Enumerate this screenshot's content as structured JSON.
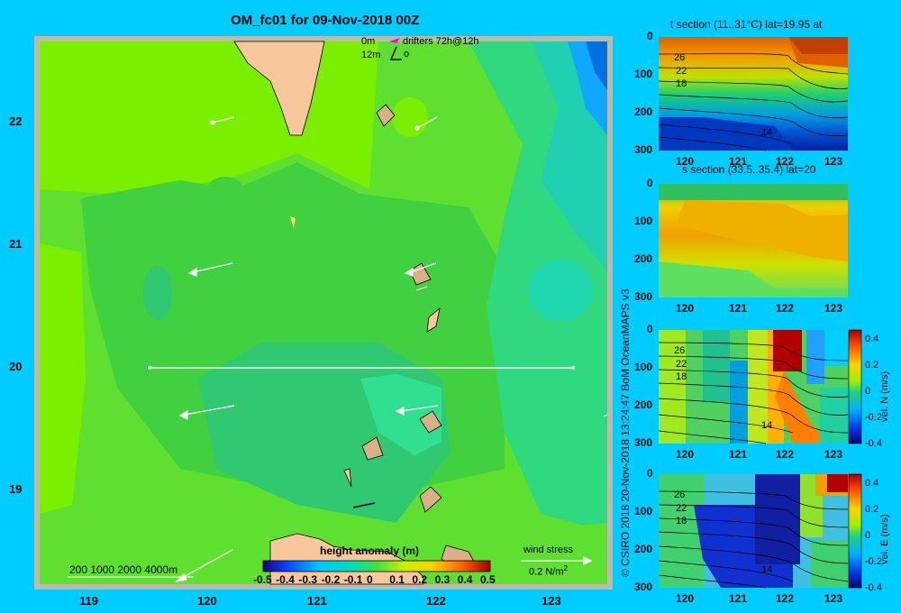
{
  "title": "OM_fc01 for 09-Nov-2018 00Z",
  "legend_drifters": {
    "depth0": "0m",
    "depth12": "12m",
    "label": "drifters 72h@12h",
    "o_mark": "o"
  },
  "scale_bar": "200  1000  2000  4000m",
  "colorbar": {
    "title": "height anomaly  (m)",
    "ticks": [
      "-0.5",
      "-0.4",
      "-0.3",
      "-0.2",
      "-0.1",
      "0",
      "0.1",
      "0.2",
      "0.3",
      "0.4",
      "0.5"
    ]
  },
  "wind": {
    "label": "wind stress",
    "value": "0.2 N/m",
    "sup": "2"
  },
  "map": {
    "lat_ticks": [
      "22",
      "21",
      "20",
      "19"
    ],
    "lon_ticks": [
      "119",
      "120",
      "121",
      "122",
      "123"
    ]
  },
  "credit": "© CSIRO 2018   20-Nov-2018 13:24:47 BoM OceanMAPS v3",
  "panels": {
    "t": {
      "title": "t section (11..31°C) lat=19.95 at",
      "depth_ticks": [
        "0",
        "100",
        "200",
        "300"
      ],
      "lon_ticks": [
        "120",
        "121",
        "122",
        "123"
      ],
      "contours": [
        "26",
        "22",
        "18",
        "14"
      ]
    },
    "s": {
      "title": "s section (33.5..35.4) lat=20",
      "depth_ticks": [
        "0",
        "100",
        "200",
        "300"
      ],
      "lon_ticks": [
        "120",
        "121",
        "122",
        "123"
      ]
    },
    "vn": {
      "depth_ticks": [
        "0",
        "100",
        "200",
        "300"
      ],
      "lon_ticks": [
        "120",
        "121",
        "122",
        "123"
      ],
      "contours": [
        "26",
        "22",
        "18",
        "14"
      ],
      "cb_ticks": [
        "0.4",
        "0.2",
        "0",
        "-0.2",
        "-0.4"
      ],
      "cb_label": "vel. N  (m/s)"
    },
    "ve": {
      "depth_ticks": [
        "0",
        "100",
        "200",
        "300"
      ],
      "lon_ticks": [
        "120",
        "121",
        "122",
        "123"
      ],
      "contours": [
        "26",
        "22",
        "18",
        "14"
      ],
      "cb_ticks": [
        "0.4",
        "0.2",
        "0",
        "-0.2",
        "-0.4"
      ],
      "cb_label": "vel. E  (m/s)"
    }
  },
  "colors": {
    "background": "#00ccff",
    "land": "#f8c89c",
    "shallow": "#d8b088",
    "border": "#c0b8a8"
  }
}
